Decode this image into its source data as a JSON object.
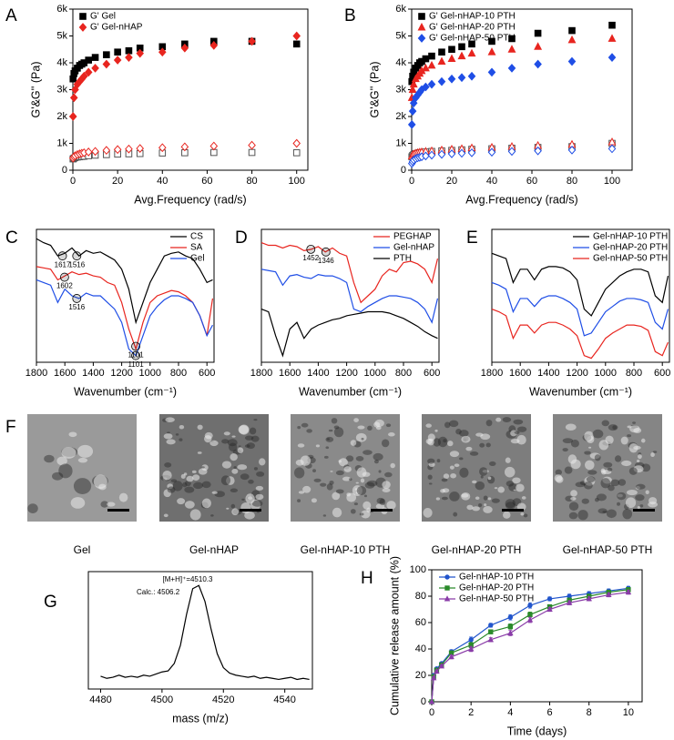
{
  "chart_data": [
    {
      "panel": "A",
      "type": "scatter",
      "xlabel": "Avg.Frequency (rad/s)",
      "ylabel": "G'&G'' (Pa)",
      "xlim": [
        0,
        105
      ],
      "ylim": [
        0,
        6000
      ],
      "xticks": [
        0,
        20,
        40,
        60,
        80,
        100
      ],
      "yticks": [
        0,
        {
          "value": 1000,
          "label": "1k"
        },
        {
          "value": 2000,
          "label": "2k"
        },
        {
          "value": 3000,
          "label": "3k"
        },
        {
          "value": 4000,
          "label": "4k"
        },
        {
          "value": 5000,
          "label": "5k"
        },
        {
          "value": 6000,
          "label": "6k"
        }
      ],
      "legend": "upper left",
      "x": [
        0.1,
        0.5,
        1,
        2,
        3,
        4,
        5,
        7,
        10,
        15,
        20,
        25,
        30,
        40,
        50,
        63,
        80,
        100
      ],
      "series": [
        {
          "name": "G' Gel",
          "color": "#000000",
          "marker": "square",
          "filled": true,
          "values": [
            3400,
            3600,
            3700,
            3800,
            3900,
            3950,
            4000,
            4100,
            4200,
            4300,
            4400,
            4450,
            4550,
            4600,
            4700,
            4800,
            4800,
            4700
          ]
        },
        {
          "name": "G' Gel-nHAP",
          "color": "#e8251f",
          "marker": "diamond",
          "filled": true,
          "values": [
            2000,
            2700,
            3000,
            3200,
            3300,
            3400,
            3500,
            3650,
            3800,
            3950,
            4100,
            4200,
            4350,
            4400,
            4550,
            4650,
            4800,
            5000
          ]
        },
        {
          "color": "#555555",
          "marker": "square",
          "filled": false,
          "values": [
            420,
            450,
            470,
            490,
            500,
            510,
            520,
            540,
            560,
            580,
            600,
            610,
            620,
            640,
            650,
            660,
            660,
            650
          ]
        },
        {
          "color": "#e8251f",
          "marker": "diamond",
          "filled": false,
          "values": [
            450,
            500,
            540,
            580,
            610,
            630,
            650,
            680,
            700,
            740,
            770,
            790,
            810,
            840,
            870,
            900,
            930,
            1000
          ]
        }
      ]
    },
    {
      "panel": "B",
      "type": "scatter",
      "xlabel": "Avg.Frequency (rad/s)",
      "ylabel": "G'&G'' (Pa)",
      "xlim": [
        0,
        110
      ],
      "ylim": [
        0,
        6000
      ],
      "xticks": [
        0,
        20,
        40,
        60,
        80,
        100
      ],
      "yticks": [
        0,
        {
          "value": 1000,
          "label": "1k"
        },
        {
          "value": 2000,
          "label": "2k"
        },
        {
          "value": 3000,
          "label": "3k"
        },
        {
          "value": 4000,
          "label": "4k"
        },
        {
          "value": 5000,
          "label": "5k"
        },
        {
          "value": 6000,
          "label": "6k"
        }
      ],
      "legend": "upper left",
      "x": [
        0.1,
        0.5,
        1,
        2,
        3,
        4,
        5,
        7,
        10,
        15,
        20,
        25,
        30,
        40,
        50,
        63,
        80,
        100
      ],
      "series": [
        {
          "name": "G' Gel-nHAP-10 PTH",
          "color": "#000000",
          "marker": "square",
          "filled": true,
          "values": [
            3300,
            3500,
            3650,
            3800,
            3900,
            4000,
            4050,
            4150,
            4250,
            4400,
            4500,
            4600,
            4700,
            4800,
            4900,
            5100,
            5200,
            5400
          ]
        },
        {
          "name": "G' Gel-nHAP-20 PTH",
          "color": "#e8251f",
          "marker": "triangle",
          "filled": true,
          "values": [
            2700,
            3000,
            3200,
            3400,
            3500,
            3600,
            3700,
            3800,
            3900,
            4050,
            4150,
            4250,
            4350,
            4400,
            4500,
            4600,
            4850,
            4900
          ]
        },
        {
          "name": "G' Gel-nHAP-50 PTH",
          "color": "#1f4ee6",
          "marker": "diamond",
          "filled": true,
          "values": [
            1700,
            2200,
            2500,
            2700,
            2800,
            2900,
            3000,
            3100,
            3200,
            3300,
            3400,
            3450,
            3500,
            3650,
            3800,
            3950,
            4050,
            4200
          ]
        },
        {
          "color": "#555555",
          "marker": "square",
          "filled": false,
          "values": [
            500,
            550,
            580,
            610,
            630,
            650,
            660,
            680,
            700,
            720,
            740,
            760,
            780,
            800,
            820,
            850,
            880,
            1000
          ]
        },
        {
          "color": "#e8251f",
          "marker": "triangle",
          "filled": false,
          "values": [
            520,
            570,
            600,
            630,
            650,
            670,
            680,
            700,
            720,
            750,
            780,
            800,
            830,
            850,
            880,
            920,
            960,
            1050
          ]
        },
        {
          "color": "#1f4ee6",
          "marker": "diamond",
          "filled": false,
          "values": [
            250,
            320,
            380,
            430,
            460,
            480,
            500,
            530,
            560,
            590,
            610,
            630,
            650,
            670,
            700,
            720,
            750,
            800
          ]
        }
      ]
    },
    {
      "panel": "C",
      "type": "line",
      "xlabel": "Wavenumber (cm⁻¹)",
      "xlim": [
        1800,
        550
      ],
      "ylim": [
        0,
        100
      ],
      "xticks": [
        1800,
        1600,
        1400,
        1200,
        1000,
        800,
        600
      ],
      "legend": "upper right",
      "x": [
        1800,
        1750,
        1700,
        1650,
        1600,
        1550,
        1500,
        1450,
        1400,
        1350,
        1300,
        1250,
        1200,
        1150,
        1100,
        1050,
        1000,
        950,
        900,
        850,
        800,
        750,
        700,
        650,
        600,
        560
      ],
      "series": [
        {
          "name": "CS",
          "color": "#000000",
          "values": [
            93,
            90,
            88,
            80,
            82,
            86,
            80,
            84,
            82,
            83,
            80,
            77,
            70,
            55,
            30,
            45,
            60,
            70,
            80,
            82,
            83,
            80,
            78,
            70,
            60,
            62
          ]
        },
        {
          "name": "SA",
          "color": "#e8251f",
          "values": [
            72,
            71,
            70,
            62,
            65,
            68,
            66,
            67,
            65,
            64,
            60,
            58,
            45,
            25,
            10,
            30,
            45,
            50,
            52,
            54,
            53,
            50,
            45,
            35,
            20,
            48
          ]
        },
        {
          "name": "Gel",
          "color": "#1f4ee6",
          "values": [
            62,
            60,
            58,
            45,
            55,
            50,
            48,
            52,
            50,
            50,
            45,
            40,
            30,
            10,
            5,
            20,
            35,
            42,
            47,
            50,
            50,
            48,
            45,
            35,
            20,
            28
          ]
        }
      ],
      "annotations": [
        {
          "text": "1617",
          "x": 1617,
          "y": 80
        },
        {
          "text": "1516",
          "x": 1516,
          "y": 80
        },
        {
          "text": "1602",
          "x": 1602,
          "y": 64
        },
        {
          "text": "1516",
          "x": 1516,
          "y": 48
        },
        {
          "text": "1101",
          "x": 1101,
          "y": 12
        },
        {
          "text": "1101",
          "x": 1101,
          "y": 5
        }
      ]
    },
    {
      "panel": "D",
      "type": "line",
      "xlabel": "Wavenumber (cm⁻¹)",
      "xlim": [
        1800,
        550
      ],
      "ylim": [
        0,
        100
      ],
      "xticks": [
        1800,
        1600,
        1400,
        1200,
        1000,
        800,
        600
      ],
      "legend": "upper right",
      "x": [
        1800,
        1750,
        1700,
        1650,
        1600,
        1550,
        1500,
        1450,
        1400,
        1350,
        1300,
        1250,
        1200,
        1150,
        1100,
        1050,
        1000,
        950,
        900,
        850,
        800,
        750,
        700,
        650,
        600,
        560
      ],
      "series": [
        {
          "name": "PEGHAP",
          "color": "#e8251f",
          "values": [
            90,
            88,
            88,
            86,
            88,
            87,
            84,
            85,
            87,
            83,
            86,
            82,
            80,
            60,
            45,
            50,
            55,
            65,
            70,
            68,
            75,
            76,
            74,
            70,
            60,
            78
          ]
        },
        {
          "name": "Gel-nHAP",
          "color": "#1f4ee6",
          "values": [
            70,
            69,
            68,
            58,
            65,
            66,
            64,
            63,
            66,
            65,
            65,
            63,
            60,
            40,
            38,
            42,
            45,
            48,
            50,
            50,
            49,
            48,
            45,
            40,
            30,
            48
          ]
        },
        {
          "name": "PTH",
          "color": "#000000",
          "values": [
            40,
            38,
            20,
            5,
            25,
            30,
            18,
            25,
            28,
            30,
            32,
            33,
            35,
            36,
            37,
            38,
            38,
            38,
            37,
            35,
            33,
            30,
            27,
            23,
            20,
            18
          ]
        }
      ],
      "annotations": [
        {
          "text": "1452",
          "x": 1452,
          "y": 85
        },
        {
          "text": "1346",
          "x": 1346,
          "y": 83
        }
      ]
    },
    {
      "panel": "E",
      "type": "line",
      "xlabel": "Wavenumber (cm⁻¹)",
      "xlim": [
        1800,
        550
      ],
      "ylim": [
        0,
        100
      ],
      "xticks": [
        1800,
        1600,
        1400,
        1200,
        1000,
        800,
        600
      ],
      "legend": "upper right",
      "x": [
        1800,
        1750,
        1700,
        1650,
        1600,
        1550,
        1500,
        1450,
        1400,
        1350,
        1300,
        1250,
        1200,
        1150,
        1100,
        1050,
        1000,
        950,
        900,
        850,
        800,
        750,
        700,
        650,
        600,
        560
      ],
      "series": [
        {
          "name": "Gel-nHAP-10 PTH",
          "color": "#000000",
          "values": [
            82,
            80,
            78,
            60,
            70,
            70,
            62,
            70,
            72,
            72,
            71,
            68,
            62,
            40,
            35,
            45,
            55,
            60,
            65,
            68,
            70,
            70,
            68,
            50,
            45,
            65
          ]
        },
        {
          "name": "Gel-nHAP-20 PTH",
          "color": "#1f4ee6",
          "values": [
            60,
            58,
            55,
            38,
            48,
            48,
            42,
            48,
            50,
            50,
            48,
            45,
            40,
            20,
            22,
            30,
            38,
            42,
            46,
            48,
            48,
            47,
            45,
            30,
            25,
            40
          ]
        },
        {
          "name": "Gel-nHAP-50 PTH",
          "color": "#e8251f",
          "values": [
            40,
            38,
            35,
            18,
            28,
            28,
            22,
            28,
            30,
            30,
            28,
            25,
            20,
            5,
            3,
            10,
            18,
            22,
            25,
            28,
            28,
            27,
            24,
            8,
            5,
            15
          ]
        }
      ]
    },
    {
      "panel": "G",
      "type": "line",
      "xlabel": "mass (m/z)",
      "xlim": [
        4476,
        4549
      ],
      "ylim": [
        0,
        110
      ],
      "xticks": [
        4480,
        4500,
        4520,
        4540
      ],
      "x": [
        4480,
        4482,
        4484,
        4486,
        4488,
        4490,
        4492,
        4494,
        4496,
        4498,
        4500,
        4502,
        4504,
        4506,
        4508,
        4510,
        4512,
        4514,
        4516,
        4518,
        4520,
        4522,
        4524,
        4526,
        4528,
        4530,
        4532,
        4534,
        4536,
        4538,
        4540,
        4542,
        4544,
        4546,
        4548
      ],
      "series": [
        {
          "color": "#000000",
          "values": [
            12,
            10,
            11,
            13,
            11,
            12,
            11,
            13,
            12,
            14,
            16,
            17,
            24,
            41,
            70,
            94,
            97,
            82,
            56,
            33,
            20,
            15,
            13,
            12,
            11,
            12,
            10,
            11,
            10,
            9,
            10,
            11,
            9,
            10,
            9
          ]
        }
      ],
      "annotations": [
        {
          "text": "[M+H]⁺=4510.3",
          "color": "#000000"
        },
        {
          "text": "Calc.: 4506.2",
          "color": "#e8251f"
        }
      ]
    },
    {
      "panel": "H",
      "type": "line",
      "xlabel": "Time (days)",
      "ylabel": "Cumulative release amount (%)",
      "xlim": [
        0,
        10.7
      ],
      "ylim": [
        0,
        100
      ],
      "xticks": [
        0,
        2,
        4,
        6,
        8,
        10
      ],
      "yticks": [
        0,
        20,
        40,
        60,
        80,
        100
      ],
      "legend": "upper left",
      "x": [
        0,
        0.1,
        0.25,
        0.5,
        1,
        2,
        3,
        4,
        5,
        6,
        7,
        8,
        9,
        10
      ],
      "series": [
        {
          "name": "Gel-nHAP-10 PTH",
          "color": "#2255cc",
          "marker": "circle",
          "filled": true,
          "values": [
            0,
            20,
            25,
            29,
            38,
            47,
            58,
            64,
            73,
            78,
            80,
            82,
            84,
            86
          ],
          "errors": [
            0,
            1,
            1,
            1,
            1.5,
            2,
            1.5,
            2,
            2,
            1.5,
            1.5,
            1.5,
            1.5,
            1.5
          ]
        },
        {
          "name": "Gel-nHAP-20 PTH",
          "color": "#2a8a2a",
          "marker": "square",
          "filled": true,
          "values": [
            0,
            19,
            24,
            28,
            37,
            43,
            53,
            57,
            66,
            72,
            77,
            80,
            83,
            85
          ],
          "errors": [
            0,
            1,
            1,
            1,
            1.5,
            2,
            1.5,
            2,
            2,
            1.5,
            1.5,
            1.5,
            1.5,
            1.5
          ]
        },
        {
          "name": "Gel-nHAP-50 PTH",
          "color": "#8a3ca8",
          "marker": "triangle",
          "filled": true,
          "values": [
            0,
            18,
            23,
            27,
            34,
            40,
            47,
            52,
            62,
            70,
            75,
            78,
            81,
            83
          ],
          "errors": [
            0,
            1,
            1,
            1,
            1.5,
            2,
            1.5,
            2,
            2,
            1.5,
            1.5,
            1.5,
            1.5,
            1.5
          ]
        }
      ]
    }
  ],
  "images": {
    "panel": "F",
    "captions": [
      "Gel",
      "Gel-nHAP",
      "Gel-nHAP-10 PTH",
      "Gel-nHAP-20 PTH",
      "Gel-nHAP-50 PTH"
    ]
  }
}
